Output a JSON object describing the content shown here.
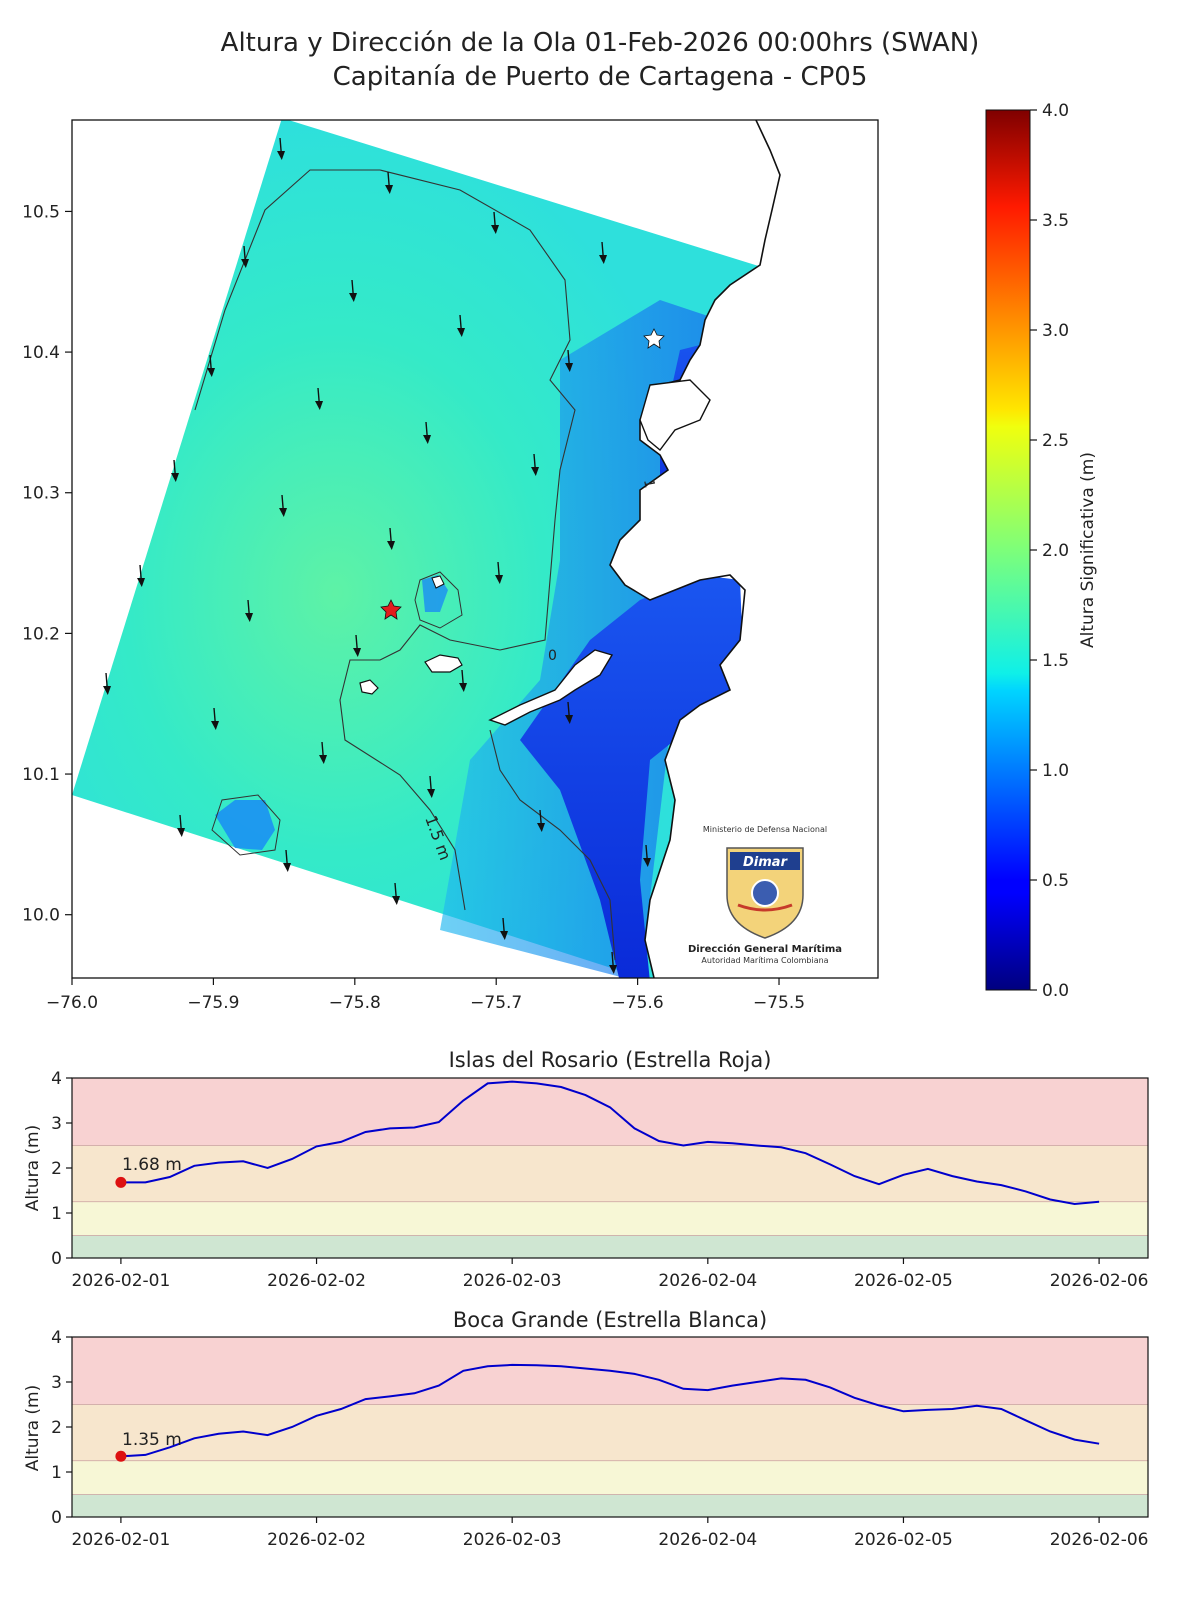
{
  "title_line1": "Altura y Dirección de la Ola 01-Feb-2026 00:00hrs (SWAN)",
  "title_line2": "Capitanía de Puerto de Cartagena - CP05",
  "logo": {
    "ministry": "Ministerio de Defensa Nacional",
    "brand": "Dimar",
    "name": "Dirección General Marítima",
    "subtitle": "Autoridad Marítima Colombiana"
  },
  "colors": {
    "accent_line": "#0000cc",
    "marker": "#dd1111",
    "band_red": "#f8d2d2",
    "band_orange": "#f7e6cd",
    "band_yellow": "#f7f7d6",
    "band_green": "#cfe6d2"
  },
  "chart_data": [
    {
      "type": "heatmap",
      "title": "",
      "x_ticks": [
        -76.0,
        -75.9,
        -75.8,
        -75.7,
        -75.6,
        -75.5
      ],
      "y_ticks": [
        10.0,
        10.1,
        10.2,
        10.3,
        10.4,
        10.5
      ],
      "xlim": [
        -76.0,
        -75.43
      ],
      "ylim": [
        9.955,
        10.565
      ],
      "colorbar": {
        "label": "Altura Significativa (m)",
        "range": [
          0.0,
          4.0
        ],
        "ticks": [
          0.0,
          0.5,
          1.0,
          1.5,
          2.0,
          2.5,
          3.0,
          3.5,
          4.0
        ],
        "colormap": "jet"
      },
      "contour_labels": [
        "1.5 m",
        "1",
        "0"
      ],
      "markers": [
        {
          "name": "Estrella Roja",
          "lon": -75.775,
          "lat": 10.217,
          "color": "red"
        },
        {
          "name": "Estrella Blanca",
          "lon": -75.585,
          "lat": 10.41,
          "color": "white"
        }
      ],
      "wave_direction": "south"
    },
    {
      "type": "line",
      "title": "Islas del Rosario (Estrella Roja)",
      "ylabel": "Altura (m)",
      "ylim": [
        0,
        4
      ],
      "y_ticks": [
        0,
        1,
        2,
        3,
        4
      ],
      "x_ticks": [
        "2026-02-01",
        "2026-02-02",
        "2026-02-03",
        "2026-02-04",
        "2026-02-05",
        "2026-02-06"
      ],
      "thresholds": [
        0.5,
        1.25,
        2.5,
        4.0
      ],
      "current_value_label": "1.68 m",
      "current": {
        "x": "2026-02-01 00:00",
        "y": 1.68
      },
      "x": [
        "2026-02-01 00:00",
        "2026-02-01 03:00",
        "2026-02-01 06:00",
        "2026-02-01 09:00",
        "2026-02-01 12:00",
        "2026-02-01 15:00",
        "2026-02-01 18:00",
        "2026-02-01 21:00",
        "2026-02-02 00:00",
        "2026-02-02 03:00",
        "2026-02-02 06:00",
        "2026-02-02 09:00",
        "2026-02-02 12:00",
        "2026-02-02 15:00",
        "2026-02-02 18:00",
        "2026-02-02 21:00",
        "2026-02-03 00:00",
        "2026-02-03 03:00",
        "2026-02-03 06:00",
        "2026-02-03 09:00",
        "2026-02-03 12:00",
        "2026-02-03 15:00",
        "2026-02-03 18:00",
        "2026-02-03 21:00",
        "2026-02-04 00:00",
        "2026-02-04 03:00",
        "2026-02-04 06:00",
        "2026-02-04 09:00",
        "2026-02-04 12:00",
        "2026-02-04 15:00",
        "2026-02-04 18:00",
        "2026-02-04 21:00",
        "2026-02-05 00:00",
        "2026-02-05 03:00",
        "2026-02-05 06:00",
        "2026-02-05 09:00",
        "2026-02-05 12:00",
        "2026-02-05 15:00",
        "2026-02-05 18:00",
        "2026-02-05 21:00",
        "2026-02-06 00:00"
      ],
      "values": [
        1.68,
        1.68,
        1.8,
        2.05,
        2.12,
        2.15,
        2.0,
        2.2,
        2.48,
        2.58,
        2.8,
        2.88,
        2.9,
        3.02,
        3.5,
        3.88,
        3.92,
        3.88,
        3.8,
        3.62,
        3.35,
        2.88,
        2.6,
        2.5,
        2.58,
        2.55,
        2.5,
        2.46,
        2.33,
        2.08,
        1.82,
        1.64,
        1.85,
        1.98,
        1.82,
        1.7,
        1.62,
        1.48,
        1.3,
        1.2,
        1.25
      ]
    },
    {
      "type": "line",
      "title": "Boca Grande (Estrella Blanca)",
      "ylabel": "Altura (m)",
      "ylim": [
        0,
        4
      ],
      "y_ticks": [
        0,
        1,
        2,
        3,
        4
      ],
      "x_ticks": [
        "2026-02-01",
        "2026-02-02",
        "2026-02-03",
        "2026-02-04",
        "2026-02-05",
        "2026-02-06"
      ],
      "thresholds": [
        0.5,
        1.25,
        2.5,
        4.0
      ],
      "current_value_label": "1.35 m",
      "current": {
        "x": "2026-02-01 00:00",
        "y": 1.35
      },
      "x": [
        "2026-02-01 00:00",
        "2026-02-01 03:00",
        "2026-02-01 06:00",
        "2026-02-01 09:00",
        "2026-02-01 12:00",
        "2026-02-01 15:00",
        "2026-02-01 18:00",
        "2026-02-01 21:00",
        "2026-02-02 00:00",
        "2026-02-02 03:00",
        "2026-02-02 06:00",
        "2026-02-02 09:00",
        "2026-02-02 12:00",
        "2026-02-02 15:00",
        "2026-02-02 18:00",
        "2026-02-02 21:00",
        "2026-02-03 00:00",
        "2026-02-03 03:00",
        "2026-02-03 06:00",
        "2026-02-03 09:00",
        "2026-02-03 12:00",
        "2026-02-03 15:00",
        "2026-02-03 18:00",
        "2026-02-03 21:00",
        "2026-02-04 00:00",
        "2026-02-04 03:00",
        "2026-02-04 06:00",
        "2026-02-04 09:00",
        "2026-02-04 12:00",
        "2026-02-04 15:00",
        "2026-02-04 18:00",
        "2026-02-04 21:00",
        "2026-02-05 00:00",
        "2026-02-05 03:00",
        "2026-02-05 06:00",
        "2026-02-05 09:00",
        "2026-02-05 12:00",
        "2026-02-05 15:00",
        "2026-02-05 18:00",
        "2026-02-05 21:00",
        "2026-02-06 00:00"
      ],
      "values": [
        1.35,
        1.38,
        1.55,
        1.75,
        1.85,
        1.9,
        1.82,
        2.0,
        2.25,
        2.4,
        2.62,
        2.68,
        2.75,
        2.92,
        3.25,
        3.35,
        3.38,
        3.37,
        3.35,
        3.3,
        3.25,
        3.18,
        3.05,
        2.85,
        2.82,
        2.92,
        3.0,
        3.08,
        3.05,
        2.88,
        2.65,
        2.48,
        2.35,
        2.38,
        2.4,
        2.47,
        2.4,
        2.15,
        1.9,
        1.72,
        1.63
      ]
    }
  ]
}
